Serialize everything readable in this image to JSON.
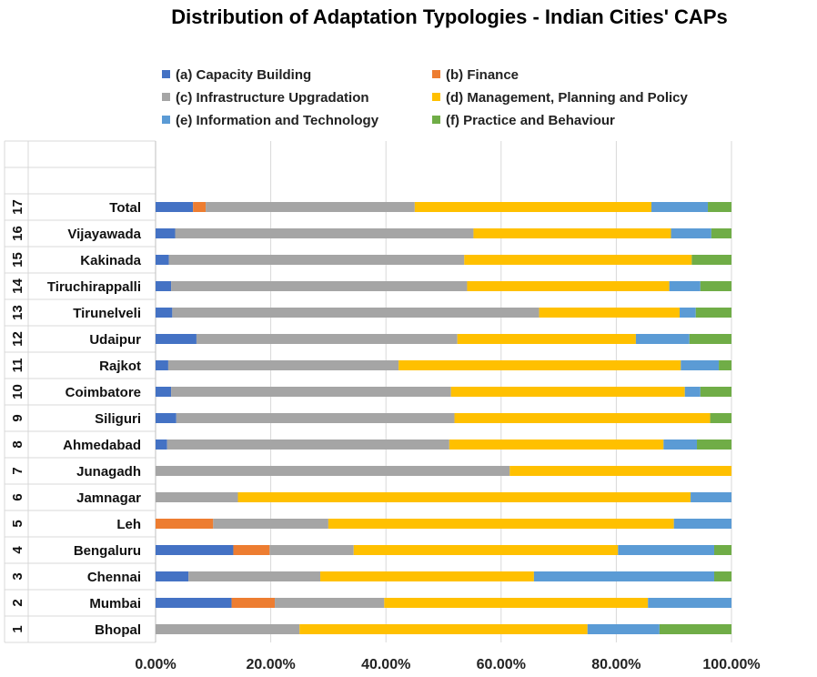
{
  "chart_data": {
    "type": "bar",
    "orientation": "horizontal",
    "stacked": "percent",
    "title": "Distribution of Adaptation Typologies - Indian Cities' CAPs",
    "xlabel": "",
    "ylabel": "",
    "xlim": [
      0,
      1
    ],
    "xticks": [
      "0.00%",
      "20.00%",
      "40.00%",
      "60.00%",
      "80.00%",
      "100.00%"
    ],
    "grid": true,
    "legend_position": "top",
    "row_numbers": [
      "1",
      "2",
      "3",
      "4",
      "5",
      "6",
      "7",
      "8",
      "9",
      "10",
      "11",
      "12",
      "13",
      "14",
      "15",
      "16",
      "17"
    ],
    "categories": [
      "Bhopal",
      "Mumbai",
      "Chennai",
      "Bengaluru",
      "Leh",
      "Jamnagar",
      "Junagadh",
      "Ahmedabad",
      "Siliguri",
      "Coimbatore",
      "Rajkot",
      "Udaipur",
      "Tirunelveli",
      "Tiruchirappalli",
      "Kakinada",
      "Vijayawada",
      "Total"
    ],
    "series": [
      {
        "name": "(a) Capacity Building",
        "color": "#4472C4",
        "values": [
          0.0,
          0.132,
          0.057,
          0.135,
          0.0,
          0.0,
          0.0,
          0.02,
          0.036,
          0.027,
          0.022,
          0.071,
          0.029,
          0.027,
          0.023,
          0.034,
          0.065
        ]
      },
      {
        "name": "(b) Finance",
        "color": "#ED7D31",
        "values": [
          0.0,
          0.075,
          0.0,
          0.063,
          0.1,
          0.0,
          0.0,
          0.0,
          0.0,
          0.0,
          0.0,
          0.0,
          0.0,
          0.0,
          0.0,
          0.0,
          0.022
        ]
      },
      {
        "name": "(c) Infrastructure Upgradation",
        "color": "#A5A5A5",
        "values": [
          0.25,
          0.19,
          0.229,
          0.146,
          0.2,
          0.143,
          0.615,
          0.49,
          0.483,
          0.486,
          0.4,
          0.453,
          0.637,
          0.514,
          0.513,
          0.518,
          0.363
        ]
      },
      {
        "name": "(d) Management, Planning and Policy",
        "color": "#FFC000",
        "values": [
          0.5,
          0.458,
          0.371,
          0.459,
          0.6,
          0.786,
          0.385,
          0.372,
          0.444,
          0.406,
          0.49,
          0.31,
          0.244,
          0.351,
          0.395,
          0.343,
          0.411
        ]
      },
      {
        "name": "(e) Information and Technology",
        "color": "#5B9BD5",
        "values": [
          0.125,
          0.145,
          0.313,
          0.167,
          0.1,
          0.071,
          0.0,
          0.058,
          0.0,
          0.027,
          0.066,
          0.093,
          0.028,
          0.054,
          0.0,
          0.07,
          0.098
        ]
      },
      {
        "name": "(f) Practice and Behaviour",
        "color": "#70AD47",
        "values": [
          0.125,
          0.0,
          0.03,
          0.03,
          0.0,
          0.0,
          0.0,
          0.06,
          0.037,
          0.054,
          0.022,
          0.073,
          0.062,
          0.054,
          0.069,
          0.035,
          0.041
        ]
      }
    ]
  }
}
